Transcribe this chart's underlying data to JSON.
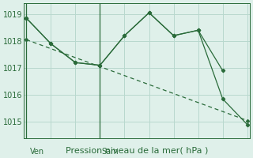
{
  "background_color": "#dff0ea",
  "grid_color": "#b8d8ce",
  "line_color": "#2a6b3a",
  "xlabel": "Pression niveau de la mer( hPa )",
  "xlabel_fontsize": 8,
  "ylabel_fontsize": 7,
  "ylim": [
    1014.4,
    1019.4
  ],
  "yticks": [
    1015,
    1016,
    1017,
    1018,
    1019
  ],
  "xlim": [
    -0.1,
    9.1
  ],
  "ven_x": 0.15,
  "sam_x": 3.05,
  "n_grid_cols": 10,
  "line1_x": [
    0,
    1,
    2,
    3,
    4,
    5,
    6,
    7,
    8
  ],
  "line1_y": [
    1018.85,
    1017.9,
    1017.2,
    1017.1,
    1018.2,
    1019.05,
    1018.2,
    1018.4,
    1016.9
  ],
  "line2_x": [
    0,
    1,
    2,
    3,
    4,
    5,
    6,
    7,
    8,
    9
  ],
  "line2_y": [
    1018.85,
    1017.9,
    1017.2,
    1017.1,
    1018.2,
    1019.05,
    1018.2,
    1018.4,
    1015.85,
    1014.9
  ],
  "line3_x": [
    0,
    9
  ],
  "line3_y": [
    1018.05,
    1015.05
  ]
}
